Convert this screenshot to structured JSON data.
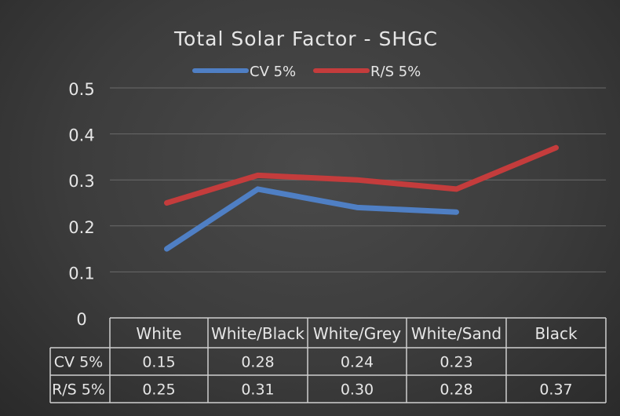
{
  "chart_data": {
    "type": "line",
    "title": "Total Solar Factor - SHGC",
    "categories": [
      "White",
      "White/Black",
      "White/Grey",
      "White/Sand",
      "Black"
    ],
    "series": [
      {
        "name": "CV 5%",
        "values": [
          0.15,
          0.28,
          0.24,
          0.23,
          null
        ],
        "labels": [
          "0.15",
          "0.28",
          "0.24",
          "0.23",
          ""
        ],
        "color": "#4f7fc4"
      },
      {
        "name": "R/S 5%",
        "values": [
          0.25,
          0.31,
          0.3,
          0.28,
          0.37
        ],
        "labels": [
          "0.25",
          "0.31",
          "0.30",
          "0.28",
          "0.37"
        ],
        "color": "#c43c3c"
      }
    ],
    "ylim": [
      0,
      0.5
    ],
    "yticks": [
      "0",
      "0.1",
      "0.2",
      "0.3",
      "0.4",
      "0.5"
    ],
    "grid": true,
    "legend_position": "top-center",
    "data_table": true
  }
}
